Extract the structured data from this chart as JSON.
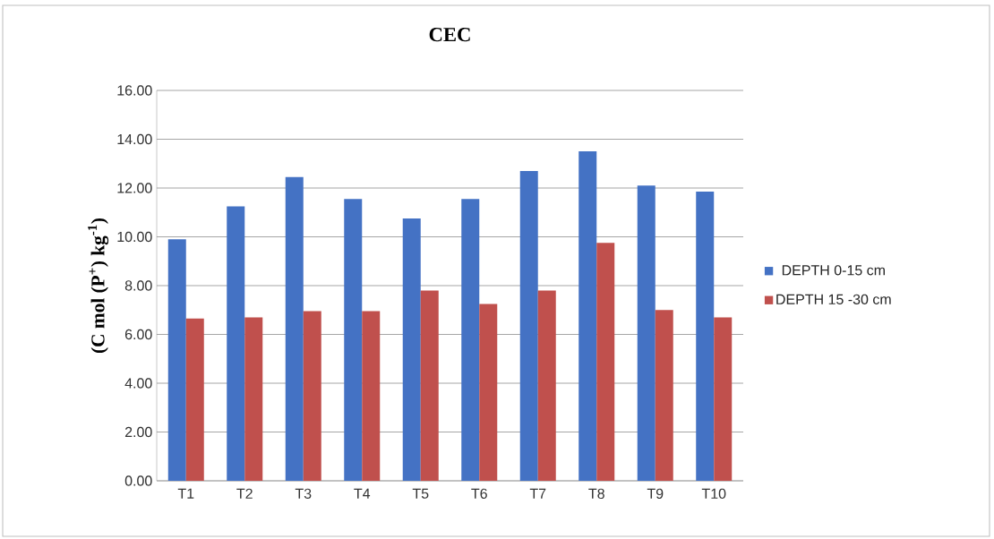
{
  "chart_data": {
    "type": "bar",
    "title": "CEC",
    "ylabel": "(C mol (P$^{+}$) kg$^{-1}$)",
    "categories": [
      "T1",
      "T2",
      "T3",
      "T4",
      "T5",
      "T6",
      "T7",
      "T8",
      "T9",
      "T10"
    ],
    "series": [
      {
        "name": "DEPTH 0-15 cm",
        "color": "#4472c4",
        "values": [
          9.9,
          11.25,
          12.45,
          11.55,
          10.75,
          11.55,
          12.7,
          13.5,
          12.1,
          11.85
        ]
      },
      {
        "name": "DEPTH 15 -30 cm",
        "color": "#c0504d",
        "values": [
          6.65,
          6.7,
          6.95,
          6.95,
          7.8,
          7.25,
          7.8,
          9.75,
          7.0,
          6.7
        ]
      }
    ],
    "ylim": [
      0,
      16
    ],
    "yticks": [
      {
        "value": 0,
        "label": "0.00"
      },
      {
        "value": 2,
        "label": "2.00"
      },
      {
        "value": 4,
        "label": "4.00"
      },
      {
        "value": 6,
        "label": "6.00"
      },
      {
        "value": 8,
        "label": "8.00"
      },
      {
        "value": 10,
        "label": "10.00"
      },
      {
        "value": 12,
        "label": "12.00"
      },
      {
        "value": 14,
        "label": "14.00"
      },
      {
        "value": 16,
        "label": "16.00"
      }
    ],
    "grid": "y",
    "legend": "right"
  }
}
